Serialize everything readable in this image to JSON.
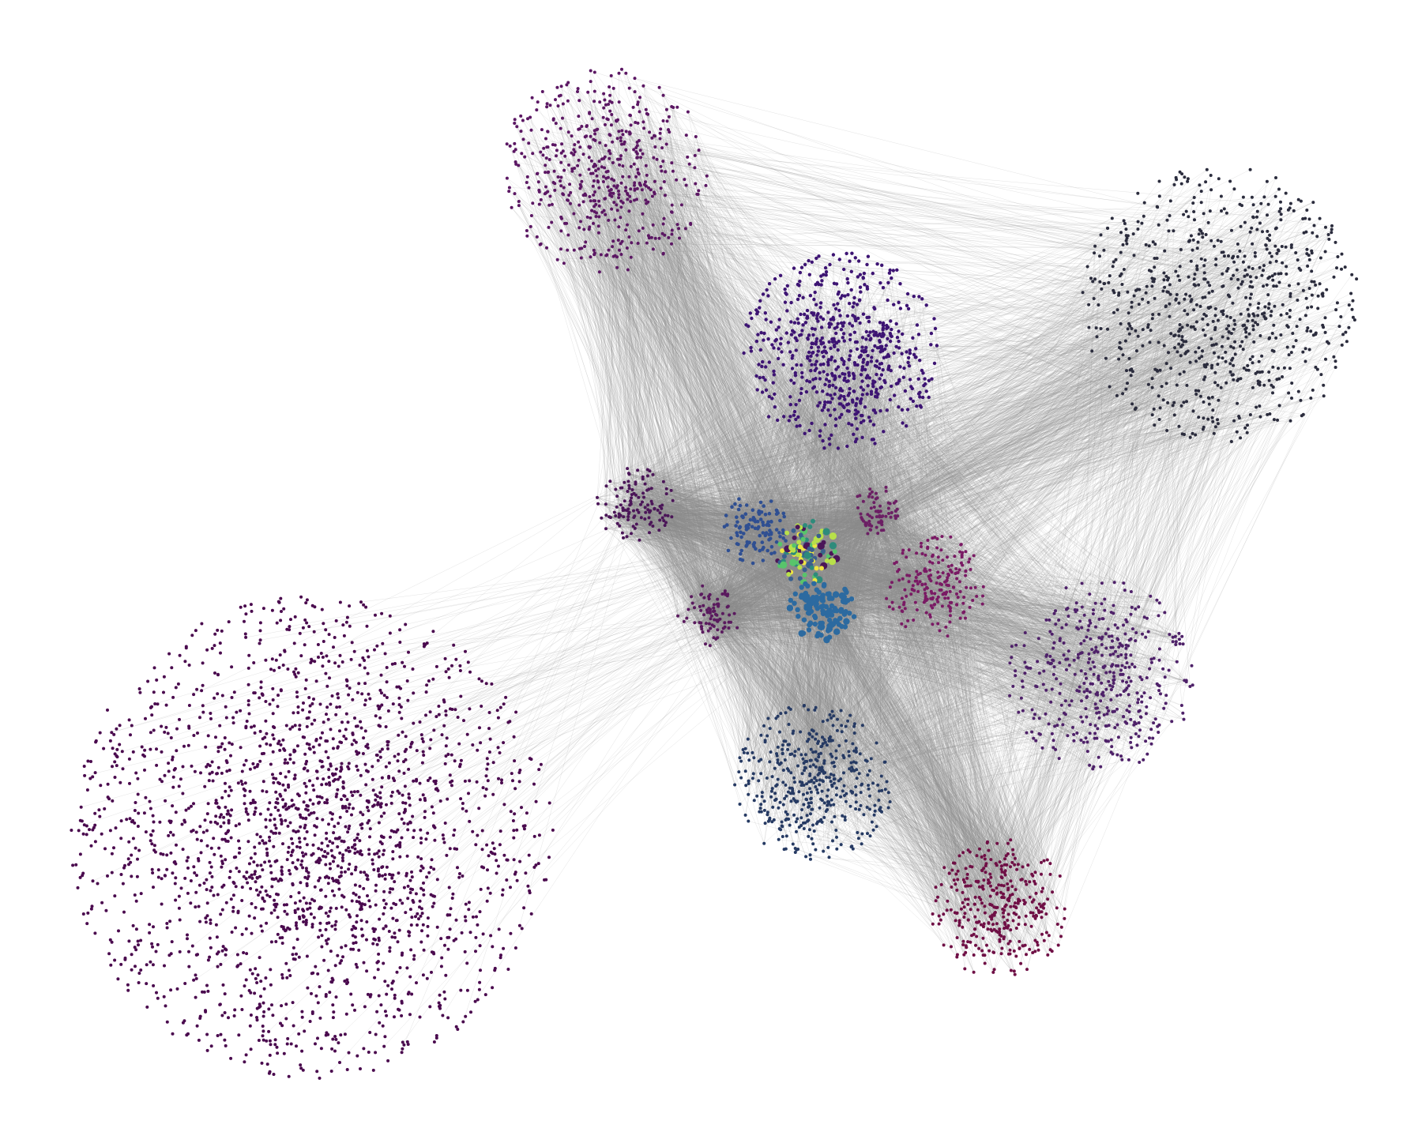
{
  "diagram": {
    "type": "network-graph",
    "edge_color": "#8c8c8c",
    "background": "#ffffff",
    "clusters": [
      {
        "id": "big-lower-left",
        "color": "#4a0a4e",
        "density": "very-high"
      },
      {
        "id": "upper-left",
        "color": "#5b1763",
        "density": "high"
      },
      {
        "id": "upper-center",
        "color": "#3d1473",
        "density": "high"
      },
      {
        "id": "upper-right",
        "color": "#2b2c3d",
        "density": "high"
      },
      {
        "id": "mid-left-small",
        "color": "#4b1658",
        "density": "medium"
      },
      {
        "id": "center-blue",
        "color": "#2f4f92",
        "density": "medium"
      },
      {
        "id": "center-multicolor",
        "colors": [
          "#2e8b7b",
          "#58c46b",
          "#b8e04a",
          "#f0e442",
          "#3a5f8e",
          "#4b1658"
        ],
        "density": "medium"
      },
      {
        "id": "center-small-right",
        "color": "#6c1f64",
        "density": "medium"
      },
      {
        "id": "center-blue-lower",
        "color": "#2c6aa0",
        "density": "medium"
      },
      {
        "id": "center-small-left",
        "color": "#5a1a5e",
        "density": "medium"
      },
      {
        "id": "mid-right-pink",
        "color": "#7a1a64",
        "density": "medium"
      },
      {
        "id": "right-purple",
        "color": "#4e2169",
        "density": "high"
      },
      {
        "id": "lower-center-navy",
        "color": "#263a63",
        "density": "high"
      },
      {
        "id": "lower-right-red",
        "color": "#6f0f45",
        "density": "high"
      }
    ]
  }
}
